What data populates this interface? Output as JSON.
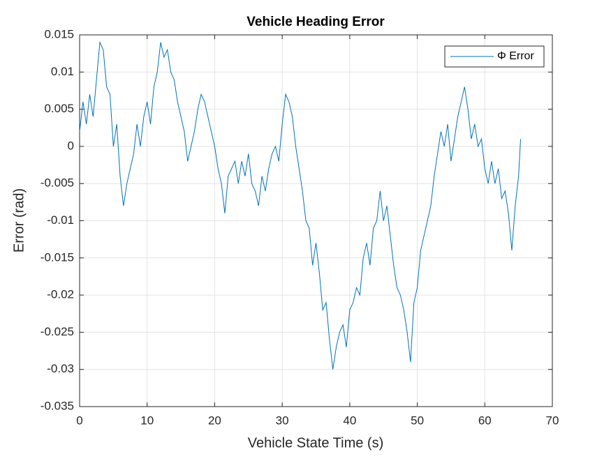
{
  "chart_data": {
    "type": "line",
    "title": "Vehicle Heading Error",
    "xlabel": "Vehicle State Time (s)",
    "ylabel": "Error (rad)",
    "x": [
      0,
      0.5,
      1,
      1.5,
      2,
      2.5,
      3,
      3.5,
      4,
      4.5,
      5,
      5.5,
      6,
      6.5,
      7,
      7.5,
      8,
      8.5,
      9,
      9.5,
      10,
      10.5,
      11,
      11.5,
      12,
      12.5,
      13,
      13.5,
      14,
      14.5,
      15,
      15.5,
      16,
      16.5,
      17,
      17.5,
      18,
      18.5,
      19,
      19.5,
      20,
      20.5,
      21,
      21.5,
      22,
      22.5,
      23,
      23.5,
      24,
      24.5,
      25,
      25.5,
      26,
      26.5,
      27,
      27.5,
      28,
      28.5,
      29,
      29.5,
      30,
      30.5,
      31,
      31.5,
      32,
      32.5,
      33,
      33.5,
      34,
      34.5,
      35,
      35.5,
      36,
      36.5,
      37,
      37.5,
      38,
      38.5,
      39,
      39.5,
      40,
      40.5,
      41,
      41.5,
      42,
      42.5,
      43,
      43.5,
      44,
      44.5,
      45,
      45.5,
      46,
      46.5,
      47,
      47.5,
      48,
      48.5,
      49,
      49.5,
      50,
      50.5,
      51,
      51.5,
      52,
      52.5,
      53,
      53.5,
      54,
      54.5,
      55,
      55.5,
      56,
      56.5,
      57,
      57.5,
      58,
      58.5,
      59,
      59.5,
      60,
      60.5,
      61,
      61.5,
      62,
      62.5,
      63,
      63.5,
      64,
      64.5,
      65,
      65.3
    ],
    "series": [
      {
        "name": "Φ Error",
        "color": "#0072bd",
        "values": [
          0.002,
          0.006,
          0.003,
          0.007,
          0.004,
          0.009,
          0.014,
          0.013,
          0.008,
          0.007,
          0.0,
          0.003,
          -0.004,
          -0.008,
          -0.005,
          -0.003,
          -0.001,
          0.003,
          0.0,
          0.004,
          0.006,
          0.003,
          0.008,
          0.01,
          0.014,
          0.012,
          0.013,
          0.01,
          0.009,
          0.006,
          0.004,
          0.002,
          -0.002,
          0.0,
          0.002,
          0.005,
          0.007,
          0.006,
          0.004,
          0.002,
          0.0,
          -0.003,
          -0.005,
          -0.009,
          -0.004,
          -0.003,
          -0.002,
          -0.005,
          -0.002,
          -0.004,
          -0.001,
          -0.005,
          -0.006,
          -0.008,
          -0.004,
          -0.006,
          -0.003,
          -0.001,
          0.0,
          -0.002,
          0.003,
          0.007,
          0.006,
          0.004,
          0.0,
          -0.003,
          -0.006,
          -0.01,
          -0.011,
          -0.016,
          -0.013,
          -0.017,
          -0.022,
          -0.021,
          -0.026,
          -0.03,
          -0.027,
          -0.025,
          -0.024,
          -0.027,
          -0.022,
          -0.021,
          -0.019,
          -0.02,
          -0.015,
          -0.013,
          -0.016,
          -0.011,
          -0.01,
          -0.006,
          -0.01,
          -0.008,
          -0.012,
          -0.016,
          -0.019,
          -0.02,
          -0.022,
          -0.025,
          -0.029,
          -0.021,
          -0.019,
          -0.014,
          -0.012,
          -0.01,
          -0.008,
          -0.004,
          -0.001,
          0.002,
          0.0,
          0.003,
          -0.002,
          0.001,
          0.004,
          0.006,
          0.008,
          0.005,
          0.001,
          0.003,
          0.0,
          0.001,
          -0.003,
          -0.005,
          -0.002,
          -0.005,
          -0.003,
          -0.007,
          -0.006,
          -0.009,
          -0.014,
          -0.008,
          -0.004,
          0.001
        ]
      }
    ],
    "xlim": [
      0,
      70
    ],
    "xticks": [
      0,
      10,
      20,
      30,
      40,
      50,
      60,
      70
    ],
    "ylim": [
      -0.035,
      0.015
    ],
    "yticks": [
      -0.035,
      -0.03,
      -0.025,
      -0.02,
      -0.015,
      -0.01,
      -0.005,
      0,
      0.005,
      0.01,
      0.015
    ],
    "grid": true,
    "legend": "top-right"
  }
}
